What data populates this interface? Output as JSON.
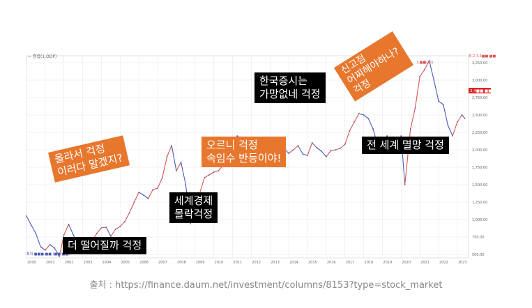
{
  "chart_data": {
    "type": "line",
    "title": "",
    "xlabel": "",
    "ylabel": "",
    "legend_text": "~ 종합(1,ODP)",
    "x_ticks": [
      "2000",
      "2001",
      "2002",
      "2003",
      "2004",
      "2005",
      "2006",
      "2007",
      "2008",
      "2009",
      "2010",
      "2011",
      "2012",
      "2013",
      "2014",
      "2015",
      "2016",
      "2017",
      "2018",
      "2019",
      "2020",
      "2021",
      "2022",
      "2023"
    ],
    "y_ticks": [
      500,
      750,
      1000,
      1250,
      1500,
      1750,
      2000,
      2250,
      2500,
      2750,
      3000,
      3250
    ],
    "y_tick_labels": [
      "500.00",
      "750.00",
      "1,000.00",
      "1,250.00",
      "1,500.00",
      "1,750.00",
      "2,000.00",
      "2,250.00",
      "2,500.00",
      "2,750.00",
      "3,000.00",
      "3,250.00"
    ],
    "ylim": [
      450,
      3350
    ],
    "xlim": [
      2000.0,
      2023.6
    ],
    "current_value_label": "2,4■■.■■",
    "high_label": "최고 3,3■■.■■",
    "low_label": "최저 ■■■.■■ (■■/■■)",
    "max_marker_label": "3,■■(21)",
    "series": [
      {
        "values": [
          [
            2000.0,
            1050
          ],
          [
            2000.25,
            920
          ],
          [
            2000.5,
            800
          ],
          [
            2000.75,
            610
          ],
          [
            2001.0,
            560
          ],
          [
            2001.25,
            640
          ],
          [
            2001.5,
            590
          ],
          [
            2001.75,
            470
          ],
          [
            2002.0,
            780
          ],
          [
            2002.25,
            930
          ],
          [
            2002.5,
            780
          ],
          [
            2002.75,
            650
          ],
          [
            2003.0,
            620
          ],
          [
            2003.25,
            540
          ],
          [
            2003.5,
            700
          ],
          [
            2003.75,
            800
          ],
          [
            2004.0,
            880
          ],
          [
            2004.25,
            890
          ],
          [
            2004.5,
            760
          ],
          [
            2004.75,
            860
          ],
          [
            2005.0,
            900
          ],
          [
            2005.25,
            970
          ],
          [
            2005.5,
            1100
          ],
          [
            2005.75,
            1250
          ],
          [
            2006.0,
            1390
          ],
          [
            2006.25,
            1350
          ],
          [
            2006.5,
            1300
          ],
          [
            2006.75,
            1430
          ],
          [
            2007.0,
            1450
          ],
          [
            2007.25,
            1600
          ],
          [
            2007.5,
            1900
          ],
          [
            2007.75,
            2060
          ],
          [
            2008.0,
            1700
          ],
          [
            2008.25,
            1820
          ],
          [
            2008.5,
            1500
          ],
          [
            2008.75,
            940
          ],
          [
            2009.0,
            1150
          ],
          [
            2009.25,
            1380
          ],
          [
            2009.5,
            1600
          ],
          [
            2009.75,
            1640
          ],
          [
            2010.0,
            1680
          ],
          [
            2010.25,
            1700
          ],
          [
            2010.5,
            1780
          ],
          [
            2010.75,
            1900
          ],
          [
            2011.0,
            2100
          ],
          [
            2011.25,
            2200
          ],
          [
            2011.5,
            2150
          ],
          [
            2011.75,
            1780
          ],
          [
            2012.0,
            1950
          ],
          [
            2012.25,
            2000
          ],
          [
            2012.5,
            1820
          ],
          [
            2012.75,
            1950
          ],
          [
            2013.0,
            2000
          ],
          [
            2013.25,
            1960
          ],
          [
            2013.5,
            1850
          ],
          [
            2013.75,
            2020
          ],
          [
            2014.0,
            1950
          ],
          [
            2014.25,
            2000
          ],
          [
            2014.5,
            2060
          ],
          [
            2014.75,
            1940
          ],
          [
            2015.0,
            1920
          ],
          [
            2015.25,
            2100
          ],
          [
            2015.5,
            2030
          ],
          [
            2015.75,
            1980
          ],
          [
            2016.0,
            1900
          ],
          [
            2016.25,
            1990
          ],
          [
            2016.5,
            2000
          ],
          [
            2016.75,
            2020
          ],
          [
            2017.0,
            2080
          ],
          [
            2017.25,
            2270
          ],
          [
            2017.5,
            2400
          ],
          [
            2017.75,
            2520
          ],
          [
            2018.0,
            2500
          ],
          [
            2018.25,
            2450
          ],
          [
            2018.5,
            2300
          ],
          [
            2018.75,
            2070
          ],
          [
            2019.0,
            2100
          ],
          [
            2019.25,
            2200
          ],
          [
            2019.5,
            2000
          ],
          [
            2019.75,
            2100
          ],
          [
            2020.0,
            2200
          ],
          [
            2020.2,
            1500
          ],
          [
            2020.5,
            2300
          ],
          [
            2020.75,
            2600
          ],
          [
            2021.0,
            3050
          ],
          [
            2021.25,
            3150
          ],
          [
            2021.5,
            3280
          ],
          [
            2021.75,
            3000
          ],
          [
            2022.0,
            2700
          ],
          [
            2022.25,
            2650
          ],
          [
            2022.5,
            2350
          ],
          [
            2022.75,
            2200
          ],
          [
            2023.0,
            2400
          ],
          [
            2023.25,
            2500
          ],
          [
            2023.4,
            2450
          ]
        ]
      }
    ]
  },
  "callouts": [
    {
      "text": "올라서 걱정\n이러다 말겠지?",
      "style": "orange"
    },
    {
      "text": "세계경제\n몰락걱정",
      "style": "black"
    },
    {
      "text": "오르니 걱정\n속임수 반등이야!",
      "style": "orange"
    },
    {
      "text": "더 떨어질까 걱정",
      "style": "black"
    },
    {
      "text": "한국증시는\n가망없네 걱정",
      "style": "black"
    },
    {
      "text": "전 세계 멸망 걱정",
      "style": "black"
    },
    {
      "text": "신고점\n어찌해야하나?\n걱정",
      "style": "orange"
    }
  ],
  "source": "출처 : https://finance.daum.net/investment/columns/8153?type=stock_market",
  "colors": {
    "up": "#d9534f",
    "down": "#4a5bb5",
    "grid": "#e6e6e6",
    "axis_text": "#666666",
    "orange": "#e8772e",
    "black": "#000000"
  }
}
